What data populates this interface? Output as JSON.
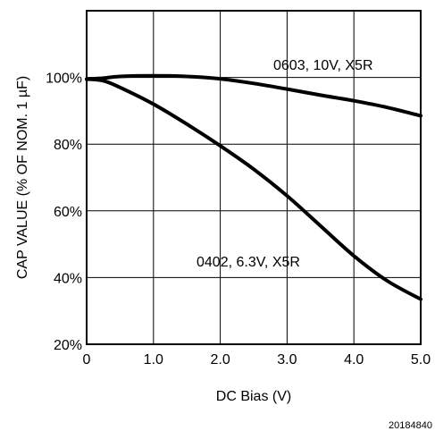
{
  "chart_data": {
    "type": "line",
    "title": "",
    "xlabel": "DC Bias (V)",
    "ylabel": "CAP VALUE (% OF NOM. 1 µF)",
    "xlim": [
      0,
      5
    ],
    "ylim": [
      20,
      120
    ],
    "x_tick_labels": [
      "0",
      "1.0",
      "2.0",
      "3.0",
      "4.0",
      "5.0"
    ],
    "y_tick_labels": [
      "20%",
      "40%",
      "60%",
      "80%",
      "100%"
    ],
    "grid": true,
    "series": [
      {
        "name": "0603, 10V, X5R",
        "x": [
          0,
          0.25,
          0.5,
          1.0,
          1.5,
          2.0,
          2.5,
          3.0,
          3.5,
          4.0,
          4.5,
          5.0
        ],
        "y": [
          99.5,
          99.8,
          100.3,
          100.5,
          100.3,
          99.6,
          98.2,
          96.5,
          94.7,
          93.0,
          91.0,
          88.5
        ]
      },
      {
        "name": "0402, 6.3V, X5R",
        "x": [
          0,
          0.25,
          0.5,
          1.0,
          1.5,
          2.0,
          2.5,
          3.0,
          3.5,
          4.0,
          4.5,
          5.0
        ],
        "y": [
          99.5,
          99.0,
          97.0,
          92.0,
          86.0,
          79.5,
          72.5,
          64.5,
          55.5,
          46.5,
          39.0,
          33.5
        ]
      }
    ]
  },
  "figure_id": "20184840"
}
